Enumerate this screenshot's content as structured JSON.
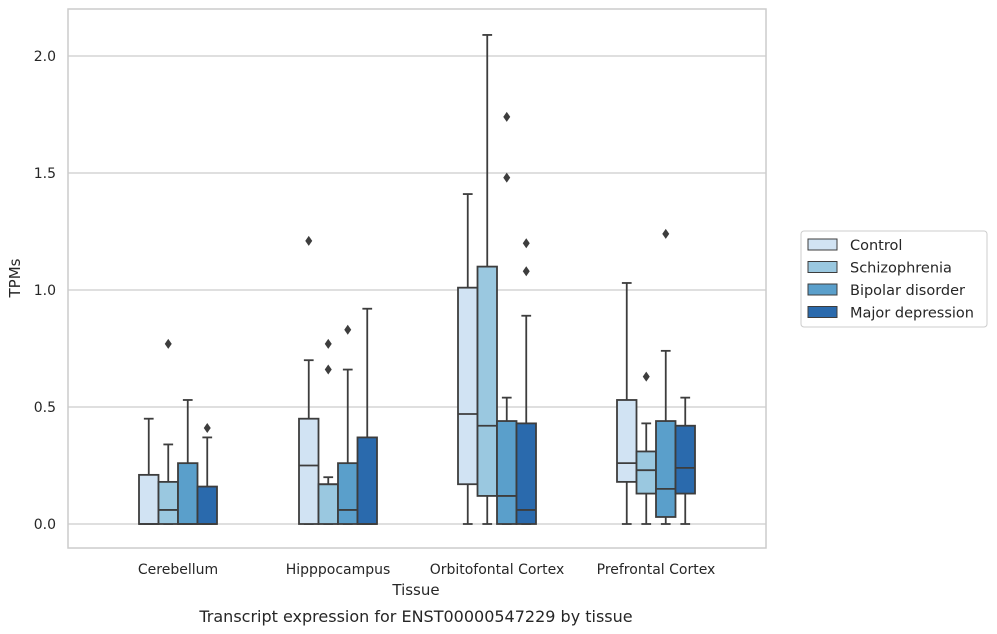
{
  "caption": "Transcript expression for ENST00000547229 by tissue",
  "chart_data": {
    "type": "box",
    "title": "",
    "xlabel": "Tissue",
    "ylabel": "TPMs",
    "ylim": [
      -0.1,
      2.2
    ],
    "yticks": [
      "0.0",
      "0.5",
      "1.0",
      "1.5",
      "2.0"
    ],
    "grid": "horizontal",
    "legend_position": "right",
    "categories": [
      "Cerebellum",
      "Hipppocampus",
      "Orbitofontal Cortex",
      "Prefrontal Cortex"
    ],
    "series": [
      {
        "name": "Control",
        "color": "#d1e3f3",
        "boxes": [
          {
            "whislo": 0.0,
            "q1": 0.0,
            "med": 0.0,
            "q3": 0.21,
            "whishi": 0.45,
            "fliers": []
          },
          {
            "whislo": 0.0,
            "q1": 0.0,
            "med": 0.25,
            "q3": 0.45,
            "whishi": 0.7,
            "fliers": [
              1.21
            ]
          },
          {
            "whislo": 0.0,
            "q1": 0.17,
            "med": 0.47,
            "q3": 1.01,
            "whishi": 1.41,
            "fliers": []
          },
          {
            "whislo": 0.0,
            "q1": 0.18,
            "med": 0.26,
            "q3": 0.53,
            "whishi": 1.03,
            "fliers": []
          }
        ]
      },
      {
        "name": "Schizophrenia",
        "color": "#9ac8e0",
        "boxes": [
          {
            "whislo": 0.0,
            "q1": 0.0,
            "med": 0.06,
            "q3": 0.18,
            "whishi": 0.34,
            "fliers": [
              0.77
            ]
          },
          {
            "whislo": 0.0,
            "q1": 0.0,
            "med": 0.17,
            "q3": 0.17,
            "whishi": 0.2,
            "fliers": [
              0.66,
              0.77
            ]
          },
          {
            "whislo": 0.0,
            "q1": 0.12,
            "med": 0.42,
            "q3": 1.1,
            "whishi": 2.09,
            "fliers": []
          },
          {
            "whislo": 0.0,
            "q1": 0.13,
            "med": 0.23,
            "q3": 0.31,
            "whishi": 0.43,
            "fliers": [
              0.63
            ]
          }
        ]
      },
      {
        "name": "Bipolar disorder",
        "color": "#5a9fcb",
        "boxes": [
          {
            "whislo": 0.0,
            "q1": 0.0,
            "med": 0.0,
            "q3": 0.26,
            "whishi": 0.53,
            "fliers": []
          },
          {
            "whislo": 0.0,
            "q1": 0.0,
            "med": 0.06,
            "q3": 0.26,
            "whishi": 0.66,
            "fliers": [
              0.83
            ]
          },
          {
            "whislo": 0.0,
            "q1": 0.0,
            "med": 0.12,
            "q3": 0.44,
            "whishi": 0.54,
            "fliers": [
              1.48,
              1.74
            ]
          },
          {
            "whislo": 0.0,
            "q1": 0.03,
            "med": 0.15,
            "q3": 0.44,
            "whishi": 0.74,
            "fliers": [
              1.24
            ]
          }
        ]
      },
      {
        "name": "Major depression",
        "color": "#2a6aad",
        "boxes": [
          {
            "whislo": 0.0,
            "q1": 0.0,
            "med": 0.0,
            "q3": 0.16,
            "whishi": 0.37,
            "fliers": [
              0.41
            ]
          },
          {
            "whislo": 0.0,
            "q1": 0.0,
            "med": 0.0,
            "q3": 0.37,
            "whishi": 0.92,
            "fliers": []
          },
          {
            "whislo": 0.0,
            "q1": 0.0,
            "med": 0.06,
            "q3": 0.43,
            "whishi": 0.89,
            "fliers": [
              1.08,
              1.2
            ]
          },
          {
            "whislo": 0.0,
            "q1": 0.13,
            "med": 0.24,
            "q3": 0.42,
            "whishi": 0.54,
            "fliers": []
          }
        ]
      }
    ]
  }
}
